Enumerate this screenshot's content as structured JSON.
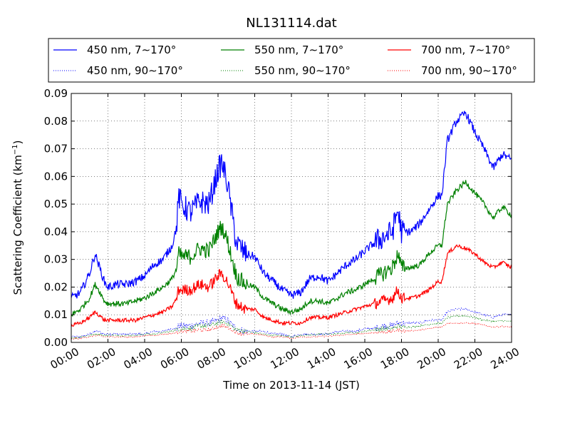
{
  "chart_data": {
    "type": "line",
    "title": "NL131114.dat",
    "xlabel": "Time on 2013-11-14 (JST)",
    "ylabel": "Scattering Coefficient (km",
    "ylabel_sup": "−1",
    "ylabel_end": ")",
    "xlim": [
      0,
      24
    ],
    "ylim": [
      0,
      0.09
    ],
    "x_ticks": [
      0,
      2,
      4,
      6,
      8,
      10,
      12,
      14,
      16,
      18,
      20,
      22,
      24
    ],
    "x_tick_labels": [
      "00:00",
      "02:00",
      "04:00",
      "06:00",
      "08:00",
      "10:00",
      "12:00",
      "14:00",
      "16:00",
      "18:00",
      "20:00",
      "22:00",
      "24:00"
    ],
    "y_ticks": [
      0,
      0.01,
      0.02,
      0.03,
      0.04,
      0.05,
      0.06,
      0.07,
      0.08,
      0.09
    ],
    "y_tick_labels": [
      "0.00",
      "0.01",
      "0.02",
      "0.03",
      "0.04",
      "0.05",
      "0.06",
      "0.07",
      "0.08",
      "0.09"
    ],
    "grid": true,
    "legend_position": "top",
    "x": [
      0,
      0.5,
      1,
      1.3,
      1.5,
      1.8,
      2,
      2.5,
      3,
      3.5,
      4,
      4.5,
      5,
      5.5,
      5.75,
      5.85,
      6,
      6.5,
      7,
      7.5,
      8,
      8.2,
      8.5,
      9,
      9.5,
      10,
      10.5,
      11,
      11.5,
      12,
      12.5,
      13,
      13.5,
      14,
      14.5,
      15,
      15.5,
      16,
      16.5,
      17,
      17.5,
      17.8,
      18,
      18.5,
      19,
      19.5,
      20,
      20.2,
      20.5,
      21,
      21.5,
      22,
      22.5,
      23,
      23.5,
      24
    ],
    "series": [
      {
        "name": "450 nm, 7∼170°",
        "color": "#0000ff",
        "style": "solid",
        "noise": 0.0015,
        "values": [
          0.016,
          0.018,
          0.025,
          0.032,
          0.028,
          0.022,
          0.02,
          0.021,
          0.021,
          0.022,
          0.024,
          0.028,
          0.03,
          0.035,
          0.042,
          0.053,
          0.05,
          0.047,
          0.051,
          0.05,
          0.062,
          0.065,
          0.058,
          0.036,
          0.032,
          0.031,
          0.025,
          0.022,
          0.019,
          0.017,
          0.018,
          0.023,
          0.024,
          0.022,
          0.025,
          0.028,
          0.03,
          0.033,
          0.036,
          0.038,
          0.04,
          0.048,
          0.04,
          0.04,
          0.043,
          0.048,
          0.053,
          0.053,
          0.073,
          0.08,
          0.083,
          0.076,
          0.07,
          0.063,
          0.068,
          0.066
        ]
      },
      {
        "name": "550 nm, 7∼170°",
        "color": "#008000",
        "style": "solid",
        "noise": 0.001,
        "values": [
          0.01,
          0.012,
          0.016,
          0.021,
          0.019,
          0.015,
          0.014,
          0.014,
          0.014,
          0.015,
          0.016,
          0.018,
          0.02,
          0.023,
          0.027,
          0.032,
          0.031,
          0.031,
          0.034,
          0.033,
          0.04,
          0.042,
          0.037,
          0.024,
          0.021,
          0.02,
          0.016,
          0.014,
          0.012,
          0.011,
          0.012,
          0.015,
          0.015,
          0.014,
          0.016,
          0.018,
          0.019,
          0.021,
          0.023,
          0.025,
          0.027,
          0.032,
          0.027,
          0.027,
          0.028,
          0.032,
          0.035,
          0.035,
          0.05,
          0.055,
          0.058,
          0.054,
          0.05,
          0.045,
          0.049,
          0.046
        ]
      },
      {
        "name": "700 nm, 7∼170°",
        "color": "#ff0000",
        "style": "solid",
        "noise": 0.0007,
        "values": [
          0.006,
          0.007,
          0.009,
          0.011,
          0.01,
          0.008,
          0.008,
          0.008,
          0.008,
          0.008,
          0.009,
          0.01,
          0.011,
          0.013,
          0.016,
          0.019,
          0.019,
          0.019,
          0.021,
          0.02,
          0.024,
          0.025,
          0.022,
          0.014,
          0.012,
          0.012,
          0.009,
          0.008,
          0.007,
          0.007,
          0.007,
          0.009,
          0.009,
          0.009,
          0.01,
          0.011,
          0.012,
          0.013,
          0.014,
          0.015,
          0.016,
          0.019,
          0.016,
          0.016,
          0.017,
          0.019,
          0.022,
          0.022,
          0.032,
          0.035,
          0.034,
          0.032,
          0.029,
          0.027,
          0.029,
          0.027
        ]
      },
      {
        "name": "450 nm, 90∼170°",
        "color": "#0000ff",
        "style": "dotted",
        "noise": 0.0004,
        "values": [
          0.002,
          0.002,
          0.003,
          0.004,
          0.004,
          0.003,
          0.003,
          0.003,
          0.003,
          0.003,
          0.003,
          0.004,
          0.004,
          0.005,
          0.005,
          0.006,
          0.006,
          0.006,
          0.007,
          0.007,
          0.008,
          0.009,
          0.008,
          0.005,
          0.004,
          0.004,
          0.004,
          0.003,
          0.003,
          0.002,
          0.003,
          0.003,
          0.003,
          0.003,
          0.004,
          0.004,
          0.004,
          0.005,
          0.005,
          0.006,
          0.006,
          0.007,
          0.007,
          0.007,
          0.007,
          0.008,
          0.008,
          0.008,
          0.011,
          0.012,
          0.012,
          0.011,
          0.01,
          0.009,
          0.01,
          0.01
        ]
      },
      {
        "name": "550 nm, 90∼170°",
        "color": "#008000",
        "style": "dotted",
        "noise": 0.0003,
        "values": [
          0.0015,
          0.002,
          0.0025,
          0.003,
          0.003,
          0.0025,
          0.0025,
          0.0025,
          0.0025,
          0.0025,
          0.003,
          0.003,
          0.0035,
          0.004,
          0.0045,
          0.005,
          0.005,
          0.005,
          0.006,
          0.006,
          0.007,
          0.0075,
          0.007,
          0.0045,
          0.004,
          0.0035,
          0.003,
          0.0025,
          0.0025,
          0.002,
          0.0025,
          0.0025,
          0.003,
          0.003,
          0.003,
          0.0035,
          0.0035,
          0.004,
          0.0045,
          0.005,
          0.005,
          0.006,
          0.0055,
          0.0055,
          0.006,
          0.0065,
          0.007,
          0.007,
          0.009,
          0.0095,
          0.0095,
          0.009,
          0.008,
          0.0075,
          0.0078,
          0.0075
        ]
      },
      {
        "name": "700 nm, 90∼170°",
        "color": "#ff0000",
        "style": "dotted",
        "noise": 0.0002,
        "values": [
          0.0012,
          0.0015,
          0.002,
          0.0025,
          0.0025,
          0.002,
          0.002,
          0.002,
          0.002,
          0.002,
          0.0025,
          0.0025,
          0.003,
          0.0032,
          0.0035,
          0.004,
          0.004,
          0.004,
          0.0045,
          0.0045,
          0.0055,
          0.006,
          0.0055,
          0.0035,
          0.003,
          0.003,
          0.0025,
          0.002,
          0.002,
          0.0015,
          0.002,
          0.002,
          0.0022,
          0.0022,
          0.0025,
          0.0028,
          0.003,
          0.0032,
          0.0035,
          0.0038,
          0.004,
          0.0045,
          0.0042,
          0.0042,
          0.0045,
          0.005,
          0.0055,
          0.0055,
          0.007,
          0.007,
          0.007,
          0.0068,
          0.0062,
          0.0055,
          0.0058,
          0.0055
        ]
      }
    ],
    "legend_order": [
      0,
      1,
      2,
      3,
      4,
      5
    ]
  }
}
